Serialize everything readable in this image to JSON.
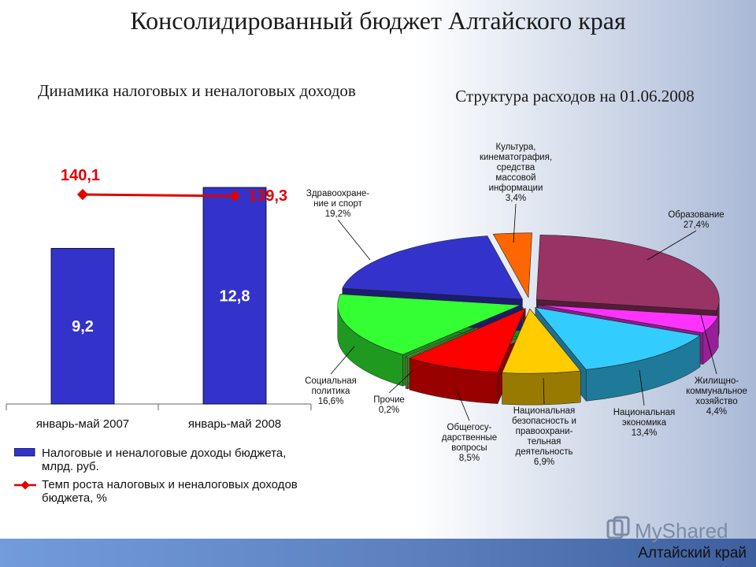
{
  "page": {
    "title": "Консолидированный бюджет Алтайского края",
    "left_title": "Динамика налоговых и неналоговых доходов",
    "right_title": "Структура расходов на 01.06.2008",
    "region_label": "Алтайский край",
    "logo_text": "MyShared"
  },
  "chart_data": [
    {
      "type": "bar",
      "categories": [
        "январь-май 2007",
        "январь-май 2008"
      ],
      "series": [
        {
          "name": "Налоговые и неналоговые доходы бюджета, млрд. руб.",
          "values": [
            9.2,
            12.8
          ],
          "labels": [
            "9,2",
            "12,8"
          ],
          "color": "#3333cc"
        },
        {
          "name": "Темп роста налоговых и неналоговых доходов бюджета, %",
          "type": "line",
          "values": [
            140.1,
            139.3
          ],
          "labels": [
            "140,1",
            "139,3"
          ],
          "color": "#e00000"
        }
      ]
    },
    {
      "type": "pie",
      "slices": [
        {
          "name": "Образование",
          "value": 27.4,
          "label": "Образование\n27,4%",
          "color": "#993366"
        },
        {
          "name": "Жилищно-коммунальное хозяйство",
          "value": 4.4,
          "label": "Жилищно-\nкоммунальное\nхозяйство\n4,4%",
          "color": "#ff33ff"
        },
        {
          "name": "Национальная экономика",
          "value": 13.4,
          "label": "Национальная\nэкономика\n13,4%",
          "color": "#33ccff"
        },
        {
          "name": "Национальная безопасность и правоохранительная деятельность",
          "value": 6.9,
          "label": "Национальная\nбезопасность и\nправоохрани-\nтельная\nдеятельность\n6,9%",
          "color": "#ffcc00"
        },
        {
          "name": "Общегосударственные вопросы",
          "value": 8.5,
          "label": "Общегосу-\nдарственные\nвопросы\n8,5%",
          "color": "#ff0000"
        },
        {
          "name": "Прочие",
          "value": 0.2,
          "label": "Прочие\n0,2%",
          "color": "#ccaa66"
        },
        {
          "name": "Социальная политика",
          "value": 16.6,
          "label": "Социальная\nполитика\n16,6%",
          "color": "#33ff33"
        },
        {
          "name": "Здравоохранение и спорт",
          "value": 19.2,
          "label": "Здравоохране-\nние и спорт\n19,2%",
          "color": "#3333cc"
        },
        {
          "name": "Культура, кинематография, средства массовой информации",
          "value": 3.4,
          "label": "Культура,\nкинематография,\nсредства\nмассовой\nинформации\n3,4%",
          "color": "#ff6600"
        }
      ]
    }
  ]
}
